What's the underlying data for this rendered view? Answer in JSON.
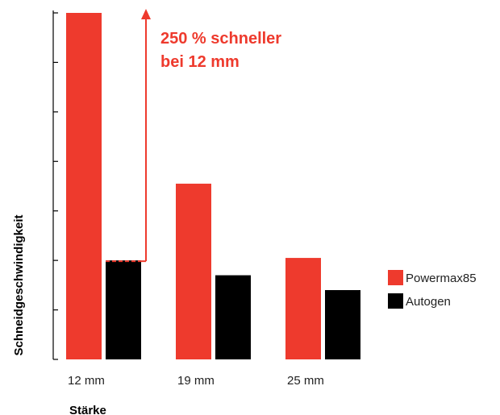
{
  "chart_data": {
    "type": "bar",
    "categories": [
      "12 mm",
      "19 mm",
      "25 mm"
    ],
    "series": [
      {
        "name": "Powermax85",
        "values": [
          7.0,
          3.55,
          2.05
        ]
      },
      {
        "name": "Autogen",
        "values": [
          2.0,
          1.7,
          1.4
        ]
      }
    ],
    "ylim": [
      0,
      7
    ],
    "y_ticks": 7,
    "y_tick_labels_shown": false,
    "xlabel": "Stärke",
    "ylabel": "Schneidgeschwindigkeit",
    "grid": false,
    "legend": "right",
    "annotation": {
      "lines": [
        "250 % schneller",
        "bei 12 mm"
      ],
      "category": "12 mm"
    },
    "colors": {
      "Powermax85": "#ee3a2d",
      "Autogen": "#000000",
      "annotation": "#ee3a2d"
    }
  }
}
